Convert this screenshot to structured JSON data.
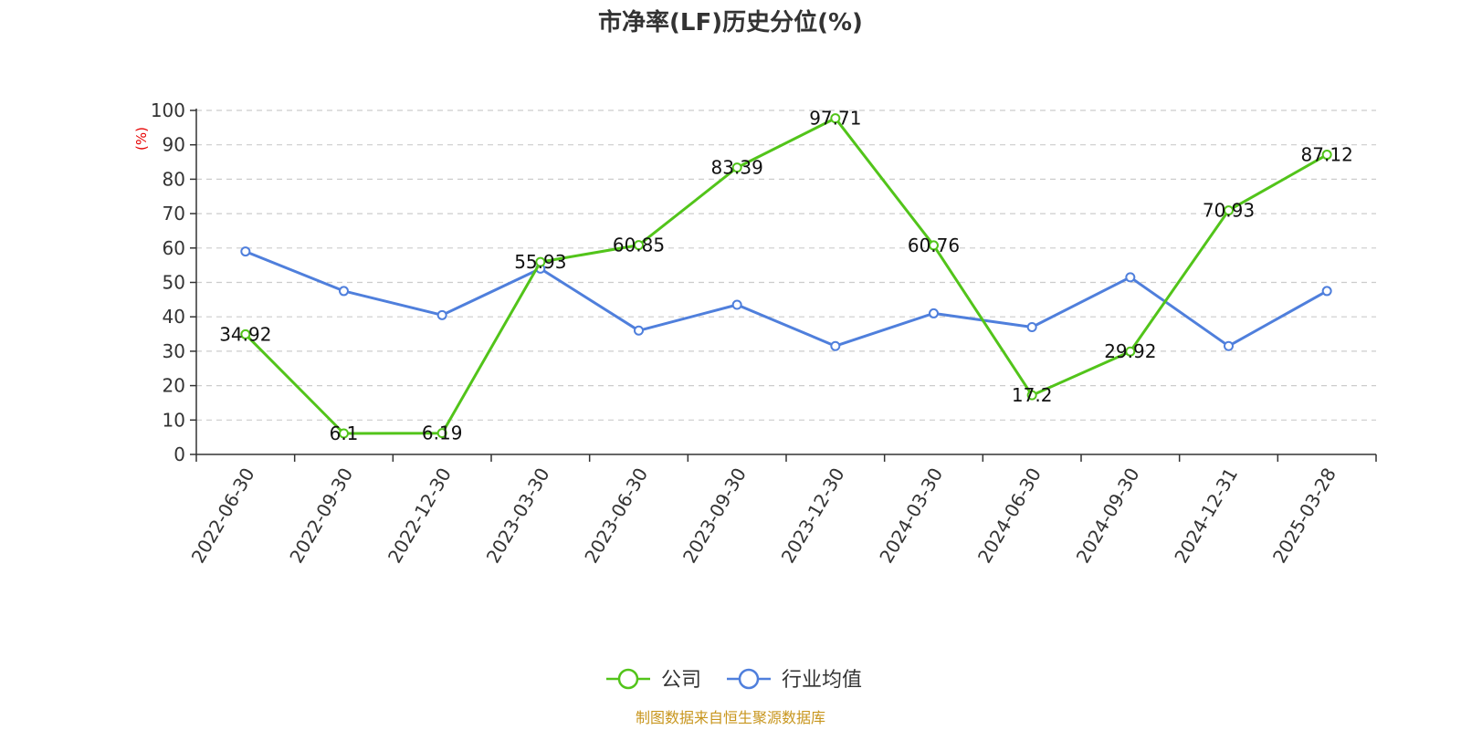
{
  "chart_data": {
    "type": "line",
    "title": "市净率(LF)历史分位(%)",
    "ylabel": "(%)",
    "ylim": [
      0,
      100
    ],
    "yticks": [
      0,
      10,
      20,
      30,
      40,
      50,
      60,
      70,
      80,
      90,
      100
    ],
    "grid": true,
    "legend_position": "bottom",
    "categories": [
      "2022-06-30",
      "2022-09-30",
      "2022-12-30",
      "2023-03-30",
      "2023-06-30",
      "2023-09-30",
      "2023-12-30",
      "2024-03-30",
      "2024-06-30",
      "2024-09-30",
      "2024-12-31",
      "2025-03-28"
    ],
    "series": [
      {
        "name": "公司",
        "color": "#52c41a",
        "values": [
          34.92,
          6.1,
          6.19,
          55.93,
          60.85,
          83.39,
          97.71,
          60.76,
          17.2,
          29.92,
          70.93,
          87.12
        ],
        "labels": [
          "34.92",
          "6.1",
          "6.19",
          "55.93",
          "60.85",
          "83.39",
          "97.71",
          "60.76",
          "17.2",
          "29.92",
          "70.93",
          "87.12"
        ]
      },
      {
        "name": "行业均值",
        "color": "#4f7fdc",
        "values": [
          59,
          47.5,
          40.5,
          54,
          36,
          43.5,
          31.5,
          41,
          37,
          51.5,
          31.5,
          47.5
        ]
      }
    ]
  },
  "colors": {
    "axis": "#333333",
    "grid": "#cccccc",
    "ylabel": "#e60000",
    "source": "#c8961e"
  },
  "footer": {
    "source": "制图数据来自恒生聚源数据库"
  }
}
